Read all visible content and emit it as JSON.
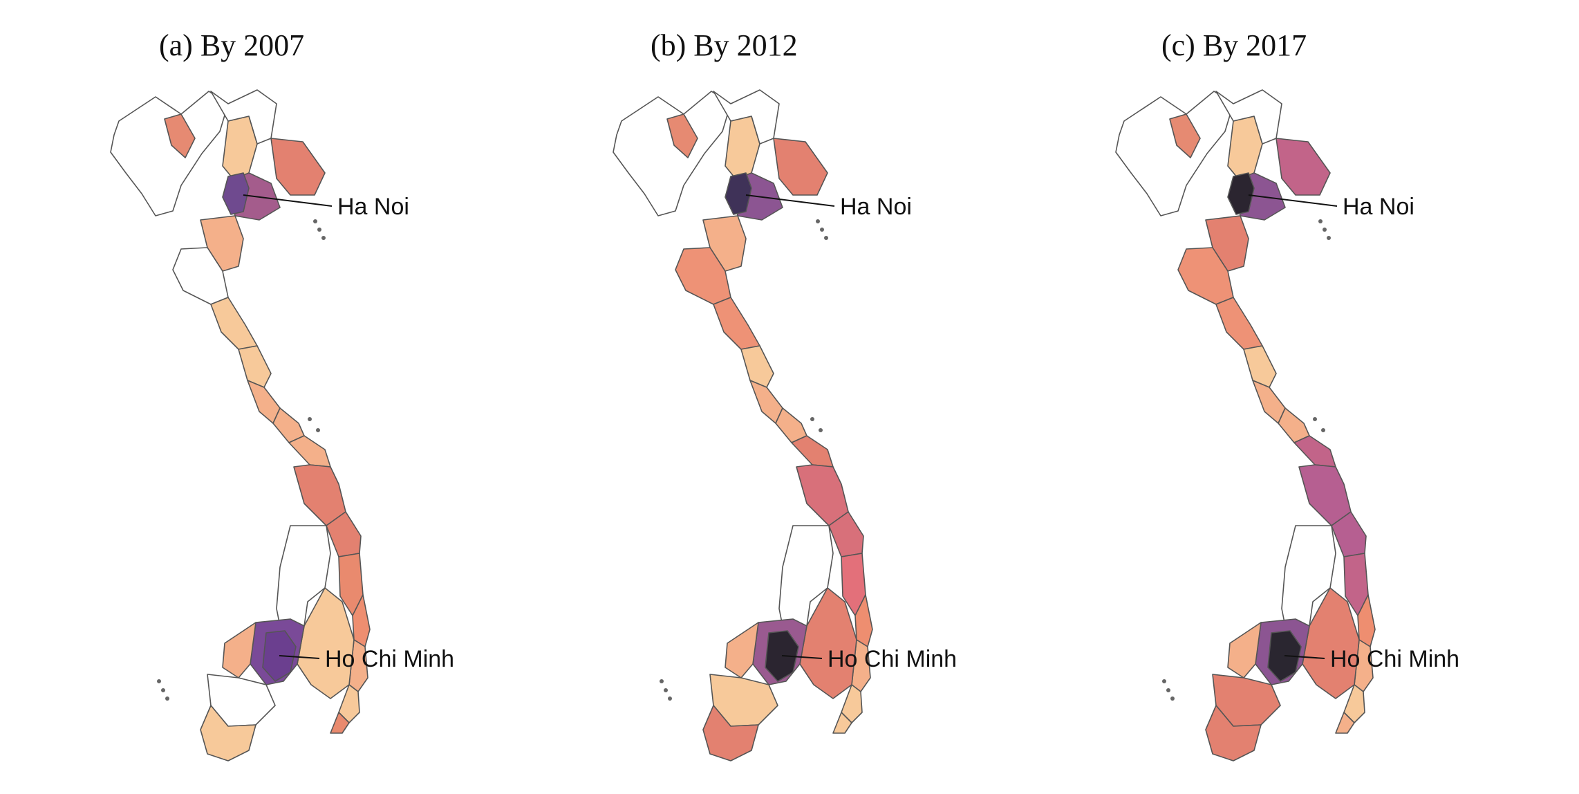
{
  "panels": [
    {
      "title": "(a) By 2007",
      "labels": {
        "north": "Ha Noi",
        "south": "Ho Chi Minh"
      },
      "fills": {
        "nw_isolated": "#e68a72",
        "north_mid": "#f7c99a",
        "hanoi_core": "#6f4a8f",
        "hanoi_ring": "#a45c8c",
        "north_east": "#e38170",
        "red_delta_s": "#f4b08a",
        "thanh_hoa": "#ffffff",
        "nghe_an": "#f7c99a",
        "ha_tinh": "#f7c99a",
        "quang_binh": "#f4b08a",
        "quang_tri": "#f4b08a",
        "hue": "#f4b08a",
        "da_nang": "#e38170",
        "quang_nam": "#e38170",
        "quang_ngai": "#e98a6e",
        "binh_dinh": "#ee8e70",
        "phu_yen": "#f4b08a",
        "khanh_hoa": "#f7c99a",
        "ninh_thuan": "#e98a6e",
        "central_high": "#ffffff",
        "dong_nai": "#f7c99a",
        "hcm_core": "#6b3f8f",
        "hcm_ring": "#7a4a98",
        "mekong_a": "#f4b08a",
        "mekong_b": "#ffffff",
        "mekong_c": "#f7c99a"
      }
    },
    {
      "title": "(b) By 2012",
      "labels": {
        "north": "Ha Noi",
        "south": "Ho Chi Minh"
      },
      "fills": {
        "nw_isolated": "#e68a72",
        "north_mid": "#f7c99a",
        "hanoi_core": "#3f3258",
        "hanoi_ring": "#8c5592",
        "north_east": "#e38170",
        "red_delta_s": "#f4b08a",
        "thanh_hoa": "#ee9276",
        "nghe_an": "#ee9276",
        "ha_tinh": "#f7c99a",
        "quang_binh": "#f4b08a",
        "quang_tri": "#f4b08a",
        "hue": "#e38170",
        "da_nang": "#d8707a",
        "quang_nam": "#d8707a",
        "quang_ngai": "#e3707a",
        "binh_dinh": "#ee8e70",
        "phu_yen": "#f4b08a",
        "khanh_hoa": "#f7c99a",
        "ninh_thuan": "#f7c99a",
        "central_high": "#ffffff",
        "dong_nai": "#e38170",
        "hcm_core": "#2b2530",
        "hcm_ring": "#9a5a90",
        "mekong_a": "#f4b08a",
        "mekong_b": "#f7c99a",
        "mekong_c": "#e38170"
      }
    },
    {
      "title": "(c) By 2017",
      "labels": {
        "north": "Ha Noi",
        "south": "Ho Chi Minh"
      },
      "fills": {
        "nw_isolated": "#e68a72",
        "north_mid": "#f7c99a",
        "hanoi_core": "#2b2530",
        "hanoi_ring": "#8c5592",
        "north_east": "#c26489",
        "red_delta_s": "#e38170",
        "thanh_hoa": "#ee9276",
        "nghe_an": "#ee9276",
        "ha_tinh": "#f7c99a",
        "quang_binh": "#f4b08a",
        "quang_tri": "#f4b08a",
        "hue": "#c26489",
        "da_nang": "#b65f91",
        "quang_nam": "#b65f91",
        "quang_ngai": "#c26489",
        "binh_dinh": "#ee8e70",
        "phu_yen": "#f4b08a",
        "khanh_hoa": "#f7c99a",
        "ninh_thuan": "#f4b08a",
        "central_high": "#ffffff",
        "dong_nai": "#e38170",
        "hcm_core": "#2a2630",
        "hcm_ring": "#8c5592",
        "mekong_a": "#f4b08a",
        "mekong_b": "#e38170",
        "mekong_c": "#e38170"
      }
    }
  ]
}
